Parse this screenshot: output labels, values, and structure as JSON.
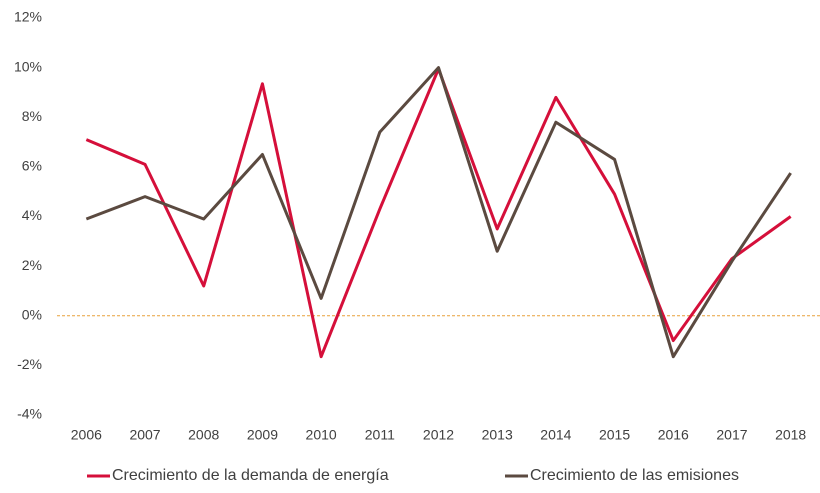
{
  "chart_data": {
    "type": "line",
    "categories": [
      "2006",
      "2007",
      "2008",
      "2009",
      "2010",
      "2011",
      "2012",
      "2013",
      "2014",
      "2015",
      "2016",
      "2017",
      "2018"
    ],
    "series": [
      {
        "name": "Crecimiento de la demanda de energía",
        "color": "#d50f3a",
        "values": [
          7.1,
          6.1,
          1.2,
          9.35,
          -1.65,
          4.3,
          9.95,
          3.5,
          8.8,
          4.9,
          -1.0,
          2.3,
          4.0
        ]
      },
      {
        "name": "Crecimiento de las emisiones",
        "color": "#5b4a40",
        "values": [
          3.9,
          4.8,
          3.9,
          6.5,
          0.7,
          7.4,
          10.0,
          2.6,
          7.8,
          6.3,
          -1.65,
          2.2,
          5.75
        ]
      }
    ],
    "ylim": [
      -4,
      12
    ],
    "yticks": [
      {
        "value": -4,
        "label": "-4%"
      },
      {
        "value": -2,
        "label": "-2%"
      },
      {
        "value": 0,
        "label": "0%"
      },
      {
        "value": 2,
        "label": "2%"
      },
      {
        "value": 4,
        "label": "4%"
      },
      {
        "value": 6,
        "label": "6%"
      },
      {
        "value": 8,
        "label": "8%"
      },
      {
        "value": 10,
        "label": "10%"
      },
      {
        "value": 12,
        "label": "12%"
      }
    ],
    "grid": false,
    "zero_line": {
      "value": 0,
      "color": "#e8a13a",
      "dashed": true
    },
    "legend": "bottom"
  }
}
